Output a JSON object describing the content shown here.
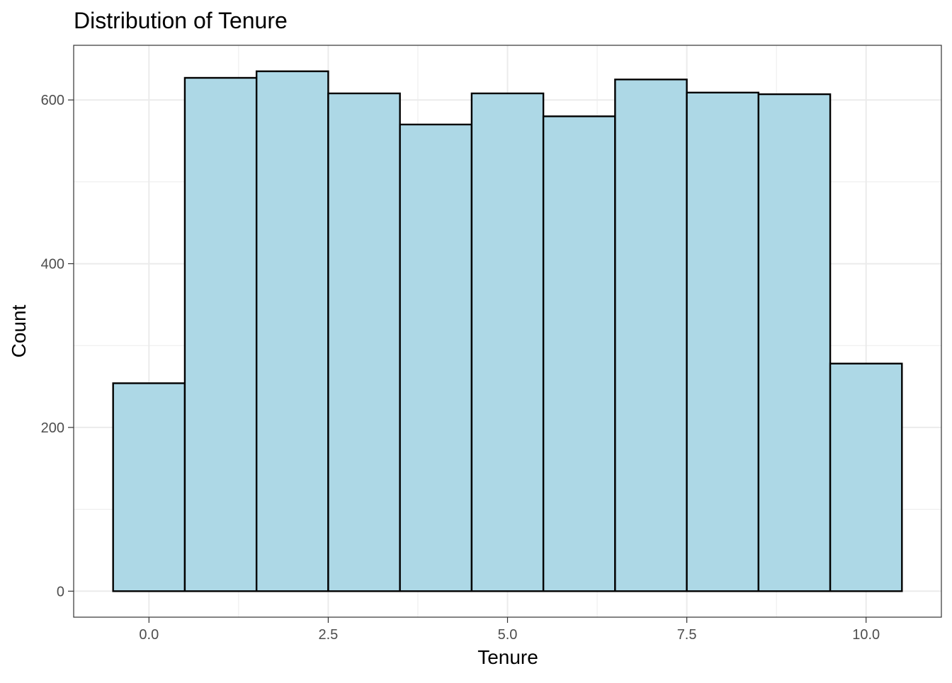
{
  "chart_data": {
    "type": "bar",
    "subtype": "histogram",
    "title": "Distribution of Tenure",
    "xlabel": "Tenure",
    "ylabel": "Count",
    "x": [
      0,
      1,
      2,
      3,
      4,
      5,
      6,
      7,
      8,
      9,
      10
    ],
    "values": [
      254,
      627,
      635,
      608,
      570,
      608,
      580,
      625,
      609,
      607,
      278
    ],
    "bin_width": 1,
    "xlim": [
      -1.05,
      11.05
    ],
    "ylim": [
      -31.75,
      666.75
    ],
    "x_ticks": [
      0,
      2.5,
      5,
      7.5,
      10
    ],
    "x_tick_labels": [
      "0.0",
      "2.5",
      "5.0",
      "7.5",
      "10.0"
    ],
    "y_ticks": [
      0,
      200,
      400,
      600
    ],
    "y_tick_labels": [
      "0",
      "200",
      "400",
      "600"
    ],
    "grid": true,
    "legend": "none",
    "colors": {
      "bar_fill": "#add8e6",
      "bar_outline": "#000000",
      "grid": "#ebebeb",
      "panel_border": "#333333",
      "tick_label": "#4d4d4d"
    }
  }
}
